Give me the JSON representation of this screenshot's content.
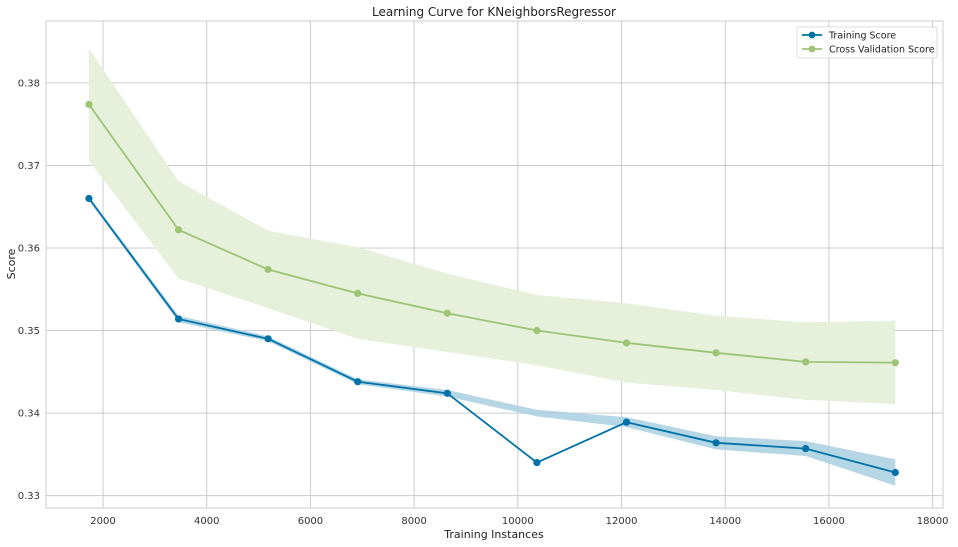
{
  "chart_data": {
    "type": "line",
    "title": "Learning Curve for KNeighborsRegressor",
    "xlabel": "Training Instances",
    "ylabel": "Score",
    "xlim": [
      900,
      18200
    ],
    "ylim": [
      0.3285,
      0.3875
    ],
    "xticks": [
      2000,
      4000,
      6000,
      8000,
      10000,
      12000,
      14000,
      16000,
      18000
    ],
    "yticks": [
      0.33,
      0.34,
      0.35,
      0.36,
      0.37,
      0.38
    ],
    "xtick_labels": [
      "2000",
      "4000",
      "6000",
      "8000",
      "10000",
      "12000",
      "14000",
      "16000",
      "18000"
    ],
    "ytick_labels": [
      "0.33",
      "0.34",
      "0.35",
      "0.36",
      "0.37",
      "0.38"
    ],
    "grid": true,
    "legend_position": "top-right",
    "x": [
      1728,
      3456,
      5184,
      6912,
      8640,
      10368,
      12096,
      13824,
      15552,
      17280
    ],
    "series": [
      {
        "name": "Training Score",
        "color": "#0072A8",
        "band_color": "#A8D0E0",
        "values": [
          0.366,
          0.3514,
          0.349,
          0.3438,
          0.3424,
          0.334,
          0.3389,
          0.3364,
          0.3357,
          0.3328
        ],
        "lower": [
          0.3658,
          0.351,
          0.3487,
          0.3435,
          0.342,
          0.3396,
          0.3383,
          0.3356,
          0.3348,
          0.3312
        ],
        "upper": [
          0.3663,
          0.3518,
          0.3493,
          0.3441,
          0.3428,
          0.3404,
          0.3395,
          0.3372,
          0.3366,
          0.3344
        ]
      },
      {
        "name": "Cross Validation Score",
        "color": "#9BC474",
        "band_color": "#E5EFD9",
        "values": [
          0.3774,
          0.3622,
          0.3574,
          0.3545,
          0.3521,
          0.35,
          0.3485,
          0.3473,
          0.3462,
          0.3461
        ],
        "lower": [
          0.3706,
          0.3563,
          0.3527,
          0.349,
          0.3474,
          0.3458,
          0.3437,
          0.3428,
          0.3416,
          0.3411
        ],
        "upper": [
          0.3842,
          0.3681,
          0.3621,
          0.3601,
          0.3569,
          0.3543,
          0.3533,
          0.3518,
          0.351,
          0.3512
        ]
      }
    ]
  }
}
